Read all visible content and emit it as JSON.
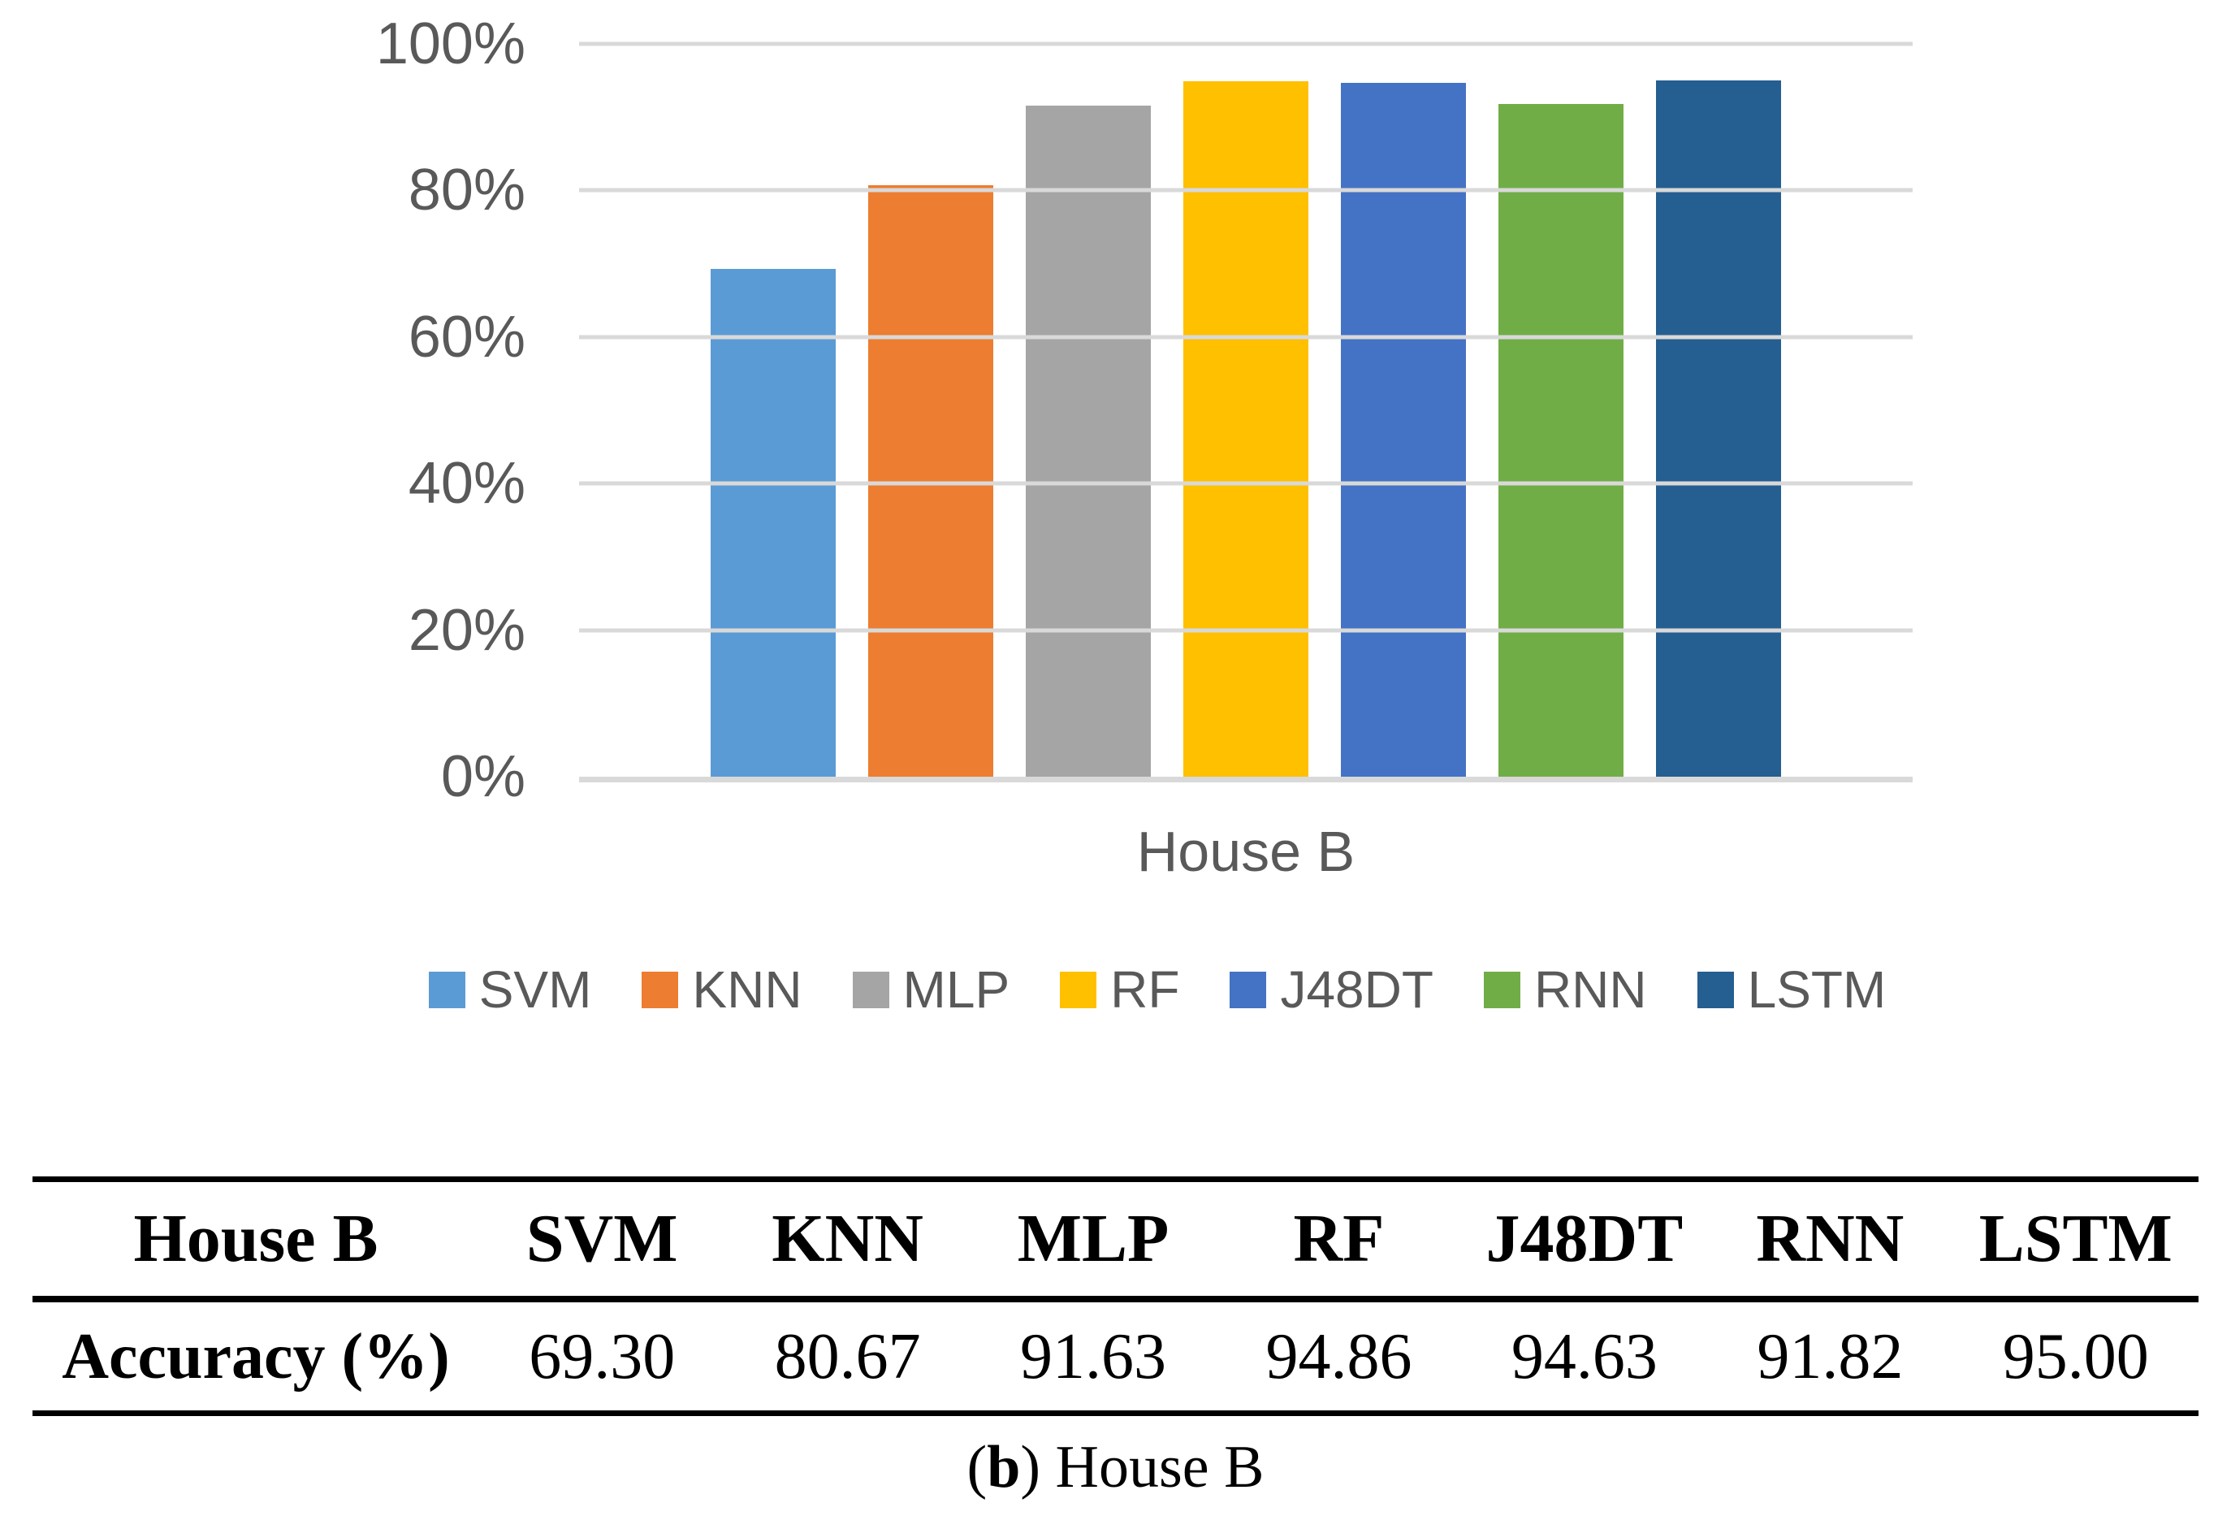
{
  "figure": {
    "x_axis_label": "House B",
    "caption": {
      "open": "(",
      "bold": "b",
      "rest": ") House B"
    }
  },
  "chart_data": {
    "type": "bar",
    "title": "",
    "categories": [
      "House B"
    ],
    "series": [
      {
        "name": "SVM",
        "value": 69.3,
        "color": "#5B9BD5"
      },
      {
        "name": "KNN",
        "value": 80.67,
        "color": "#ED7D31"
      },
      {
        "name": "MLP",
        "value": 91.63,
        "color": "#A5A5A5"
      },
      {
        "name": "RF",
        "value": 94.86,
        "color": "#FFC000"
      },
      {
        "name": "J48DT",
        "value": 94.63,
        "color": "#4472C4"
      },
      {
        "name": "RNN",
        "value": 91.82,
        "color": "#70AD47"
      },
      {
        "name": "LSTM",
        "value": 95.0,
        "color": "#255E91"
      }
    ],
    "ylim": [
      0,
      100
    ],
    "ytick_values": [
      0,
      20,
      40,
      60,
      80,
      100
    ],
    "ytick_labels": [
      "0%",
      "20%",
      "40%",
      "60%",
      "80%",
      "100%"
    ],
    "grid": true,
    "legend_position": "bottom",
    "colors": {
      "axis_text": "#595959",
      "gridline": "#D9D9D9"
    }
  },
  "table": {
    "header": [
      "House B",
      "SVM",
      "KNN",
      "MLP",
      "RF",
      "J48DT",
      "RNN",
      "LSTM"
    ],
    "rows": [
      [
        "Accuracy (%)",
        "69.30",
        "80.67",
        "91.63",
        "94.86",
        "94.63",
        "91.82",
        "95.00"
      ]
    ]
  }
}
